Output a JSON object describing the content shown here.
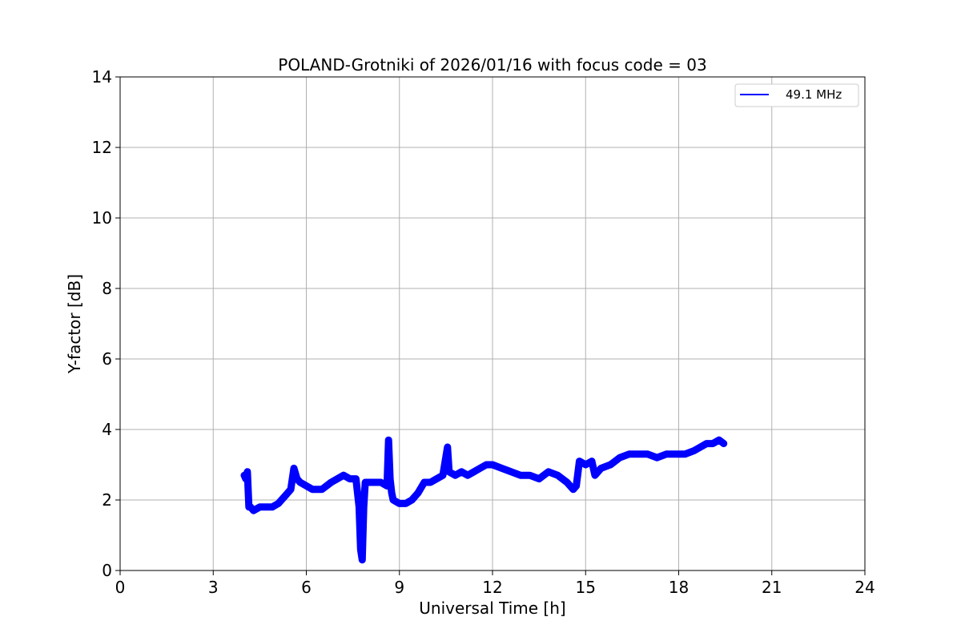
{
  "chart_data": {
    "type": "line",
    "title": "POLAND-Grotniki of 2026/01/16 with focus code = 03",
    "xlabel": "Universal Time [h]",
    "ylabel": "Y-factor [dB]",
    "xlim": [
      0,
      24
    ],
    "ylim": [
      0,
      14
    ],
    "xticks": [
      0,
      3,
      6,
      9,
      12,
      15,
      18,
      21,
      24
    ],
    "yticks": [
      0,
      2,
      4,
      6,
      8,
      10,
      12,
      14
    ],
    "grid": true,
    "legend_position": "top-right",
    "series": [
      {
        "name": "49.1 MHz",
        "color": "#0000ff",
        "x": [
          4.0,
          4.05,
          4.1,
          4.15,
          4.2,
          4.3,
          4.5,
          4.7,
          4.9,
          5.1,
          5.3,
          5.5,
          5.6,
          5.7,
          5.8,
          6.0,
          6.2,
          6.5,
          6.8,
          7.0,
          7.2,
          7.4,
          7.6,
          7.7,
          7.75,
          7.8,
          7.85,
          7.9,
          8.0,
          8.2,
          8.4,
          8.6,
          8.65,
          8.7,
          8.75,
          8.8,
          9.0,
          9.2,
          9.4,
          9.6,
          9.8,
          10.0,
          10.2,
          10.4,
          10.55,
          10.6,
          10.8,
          11.0,
          11.2,
          11.4,
          11.6,
          11.8,
          12.0,
          12.3,
          12.6,
          12.9,
          13.2,
          13.5,
          13.8,
          14.1,
          14.4,
          14.6,
          14.7,
          14.8,
          15.0,
          15.2,
          15.3,
          15.5,
          15.8,
          16.1,
          16.4,
          16.7,
          17.0,
          17.3,
          17.6,
          17.9,
          18.2,
          18.5,
          18.7,
          18.9,
          19.1,
          19.3,
          19.45
        ],
        "y": [
          2.7,
          2.6,
          2.8,
          1.8,
          1.8,
          1.7,
          1.8,
          1.8,
          1.8,
          1.9,
          2.1,
          2.3,
          2.9,
          2.6,
          2.5,
          2.4,
          2.3,
          2.3,
          2.5,
          2.6,
          2.7,
          2.6,
          2.6,
          1.8,
          0.6,
          0.3,
          1.8,
          2.5,
          2.5,
          2.5,
          2.5,
          2.4,
          3.7,
          2.6,
          2.2,
          2.0,
          1.9,
          1.9,
          2.0,
          2.2,
          2.5,
          2.5,
          2.6,
          2.7,
          3.5,
          2.8,
          2.7,
          2.8,
          2.7,
          2.8,
          2.9,
          3.0,
          3.0,
          2.9,
          2.8,
          2.7,
          2.7,
          2.6,
          2.8,
          2.7,
          2.5,
          2.3,
          2.4,
          3.1,
          3.0,
          3.1,
          2.7,
          2.9,
          3.0,
          3.2,
          3.3,
          3.3,
          3.3,
          3.2,
          3.3,
          3.3,
          3.3,
          3.4,
          3.5,
          3.6,
          3.6,
          3.7,
          3.6
        ]
      }
    ]
  }
}
